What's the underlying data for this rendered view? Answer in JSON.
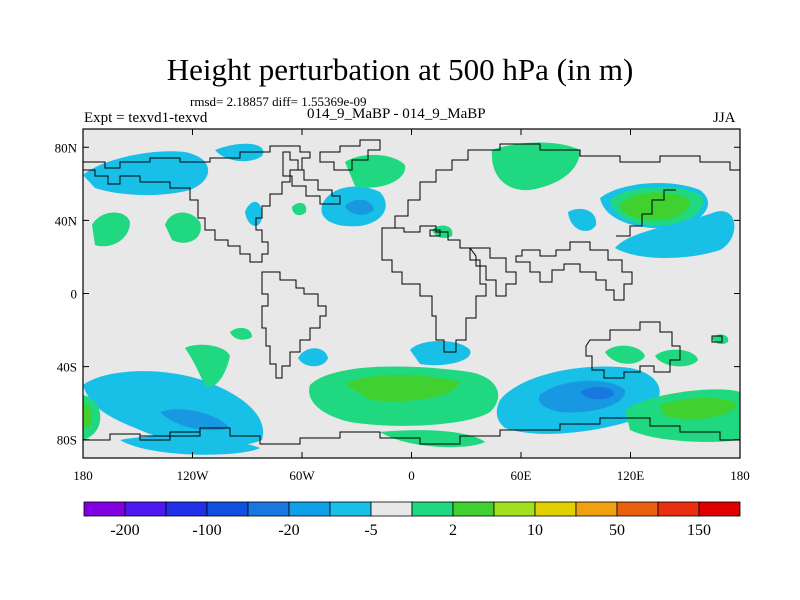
{
  "title": "Height perturbation at 500 hPa (in m)",
  "stats_line": "rmsd= 2.18857 diff= 1.55369e-09",
  "left_label": "Expt = texvd1-texvd",
  "center_label": "014_9_MaBP - 014_9_MaBP",
  "right_label": "JJA",
  "axes": {
    "x_ticks": [
      {
        "lon": -180,
        "label": "180"
      },
      {
        "lon": -120,
        "label": "120W"
      },
      {
        "lon": -60,
        "label": "60W"
      },
      {
        "lon": 0,
        "label": "0"
      },
      {
        "lon": 60,
        "label": "60E"
      },
      {
        "lon": 120,
        "label": "120E"
      },
      {
        "lon": 180,
        "label": "180"
      }
    ],
    "y_ticks": [
      {
        "lat": 80,
        "label": "80N"
      },
      {
        "lat": 40,
        "label": "40N"
      },
      {
        "lat": 0,
        "label": "0"
      },
      {
        "lat": -40,
        "label": "40S"
      },
      {
        "lat": -80,
        "label": "80S"
      }
    ],
    "xlim": [
      -180,
      180
    ],
    "ylim": [
      -90,
      90
    ]
  },
  "colorbar": {
    "colors": [
      "#8000e0",
      "#5018f0",
      "#2030e8",
      "#1050e0",
      "#1878e0",
      "#10a0e8",
      "#18c0e8",
      "#e8e8e8",
      "#20d880",
      "#40d030",
      "#a0e020",
      "#e0d000",
      "#f0a010",
      "#e86010",
      "#e83010",
      "#e00000"
    ],
    "labels": [
      "-200",
      "-100",
      "-20",
      "-5",
      "2",
      "10",
      "50",
      "150"
    ]
  },
  "chart_data": {
    "type": "filled-contour-map",
    "variable": "Height perturbation at 500 hPa",
    "units": "m",
    "season": "JJA",
    "levels": [
      -200,
      -150,
      -100,
      -50,
      -20,
      -10,
      -5,
      -2,
      2,
      5,
      10,
      20,
      50,
      100,
      150,
      200
    ],
    "anomalies": [
      {
        "lon": -150,
        "lat": 68,
        "value": -5
      },
      {
        "lon": -88,
        "lat": 72,
        "value": -5
      },
      {
        "lon": -28,
        "lat": 46,
        "value": -10
      },
      {
        "lon": -9,
        "lat": 72,
        "value": 5
      },
      {
        "lon": 66,
        "lat": 74,
        "value": 5
      },
      {
        "lon": 136,
        "lat": 52,
        "value": 10
      },
      {
        "lon": 128,
        "lat": 30,
        "value": -5
      },
      {
        "lon": -165,
        "lat": 38,
        "value": 5
      },
      {
        "lon": -125,
        "lat": 42,
        "value": 5
      },
      {
        "lon": -10,
        "lat": -52,
        "value": 10
      },
      {
        "lon": 100,
        "lat": -55,
        "value": -20
      },
      {
        "lon": 158,
        "lat": -66,
        "value": 10
      },
      {
        "lon": -140,
        "lat": -68,
        "value": -10
      },
      {
        "lon": 12,
        "lat": -31,
        "value": -5
      },
      {
        "lon": -167,
        "lat": -67,
        "value": 10
      },
      {
        "lon": -50,
        "lat": -35,
        "value": -5
      }
    ]
  }
}
